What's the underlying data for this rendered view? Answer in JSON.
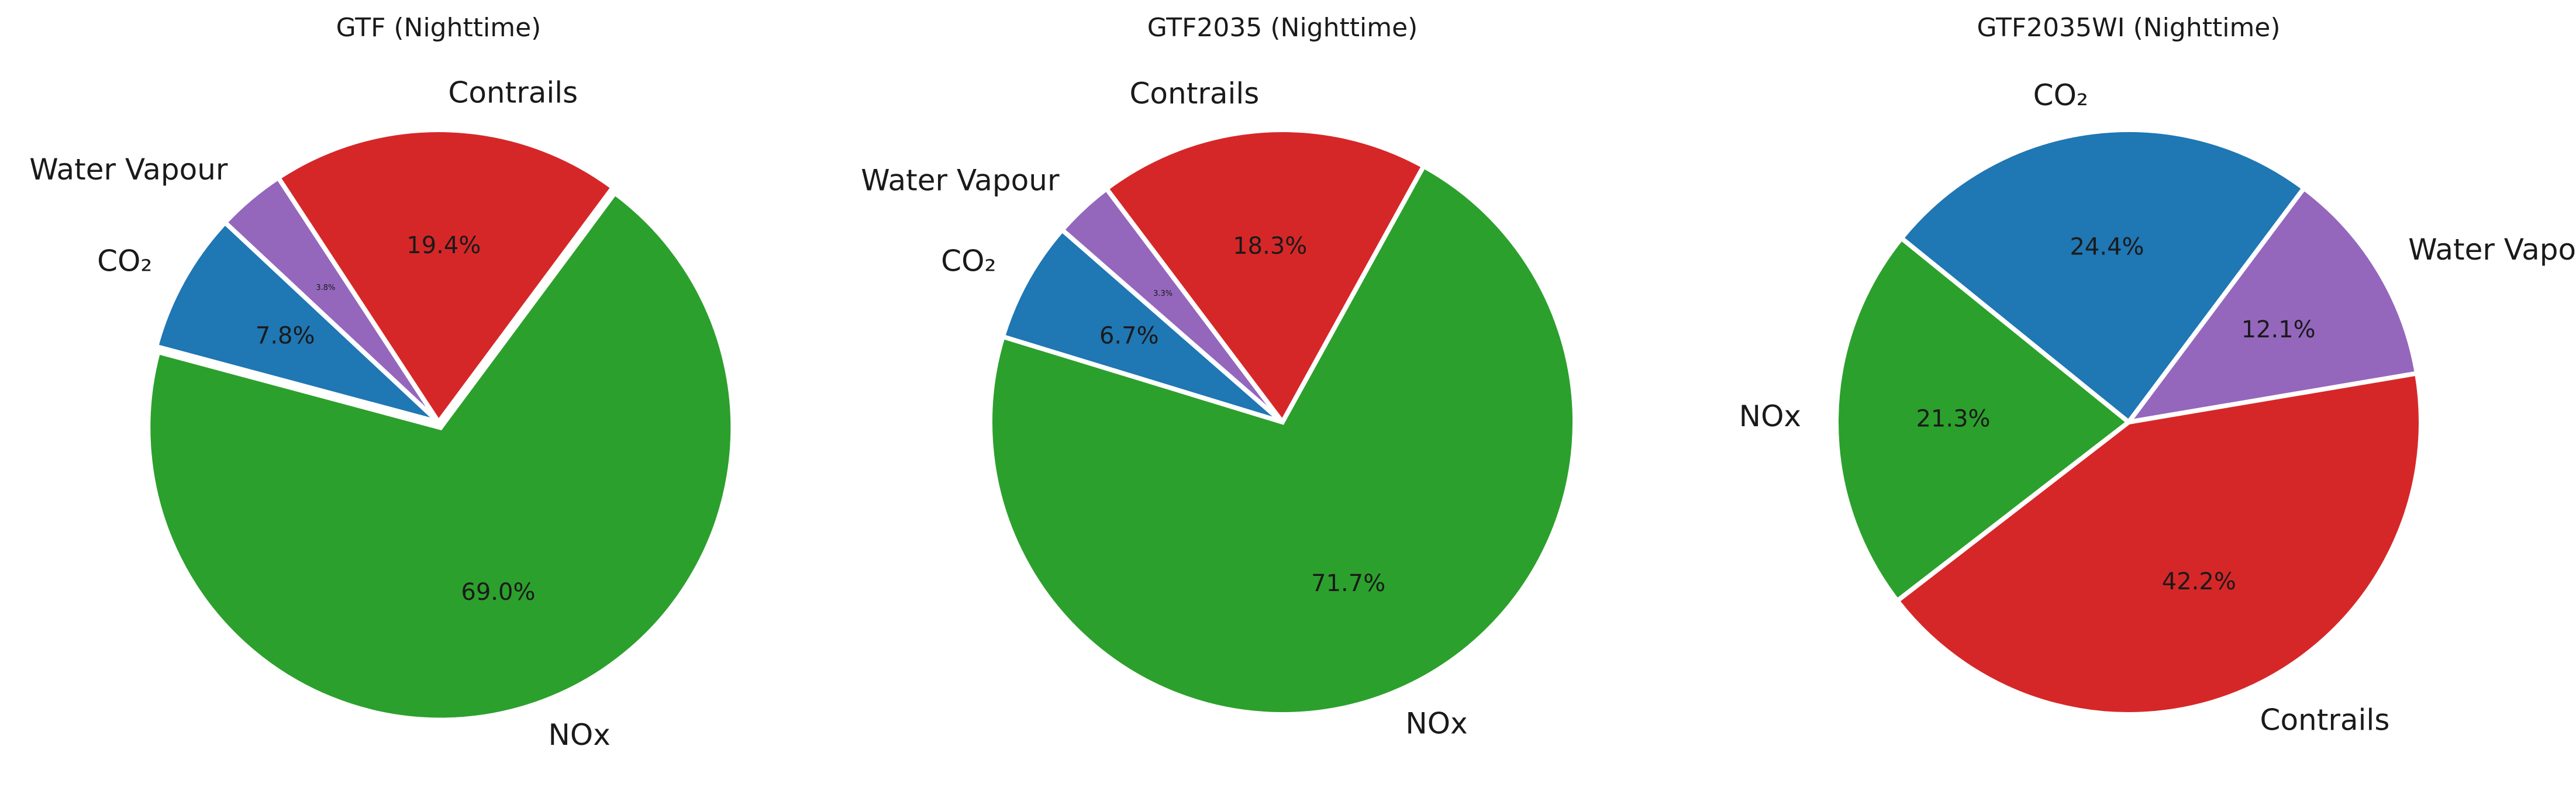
{
  "colors": {
    "CO₂": "#1f77b4",
    "Water Vapour": "#9467bd",
    "Contrails": "#d62728",
    "NOx": "#2ca02c"
  },
  "chart_data": [
    {
      "type": "pie",
      "title": "GTF (Nighttime)",
      "categories": [
        "CO₂",
        "Water Vapour",
        "Contrails",
        "NOx"
      ],
      "values": [
        7.8,
        3.8,
        19.4,
        69.0
      ],
      "value_labels": [
        "7.8%",
        "3.8%",
        "19.4%",
        "69.0%"
      ],
      "start_angle_deg": 165,
      "counterclockwise": false,
      "explode": [
        0,
        0,
        0,
        0.02
      ]
    },
    {
      "type": "pie",
      "title": "GTF2035 (Nighttime)",
      "categories": [
        "CO₂",
        "Water Vapour",
        "Contrails",
        "NOx"
      ],
      "values": [
        6.7,
        3.3,
        18.3,
        71.7
      ],
      "value_labels": [
        "6.7%",
        "3.3%",
        "18.3%",
        "71.7%"
      ],
      "start_angle_deg": 163,
      "counterclockwise": false,
      "explode": [
        0,
        0,
        0,
        0
      ]
    },
    {
      "type": "pie",
      "title": "GTF2035WI (Nighttime)",
      "categories": [
        "CO₂",
        "Water Vapour",
        "Contrails",
        "NOx"
      ],
      "values": [
        24.4,
        12.1,
        42.2,
        21.3
      ],
      "value_labels": [
        "24.4%",
        "12.1%",
        "42.2%",
        "21.3%"
      ],
      "start_angle_deg": 141,
      "counterclockwise": false,
      "explode": [
        0,
        0,
        0,
        0
      ]
    }
  ]
}
